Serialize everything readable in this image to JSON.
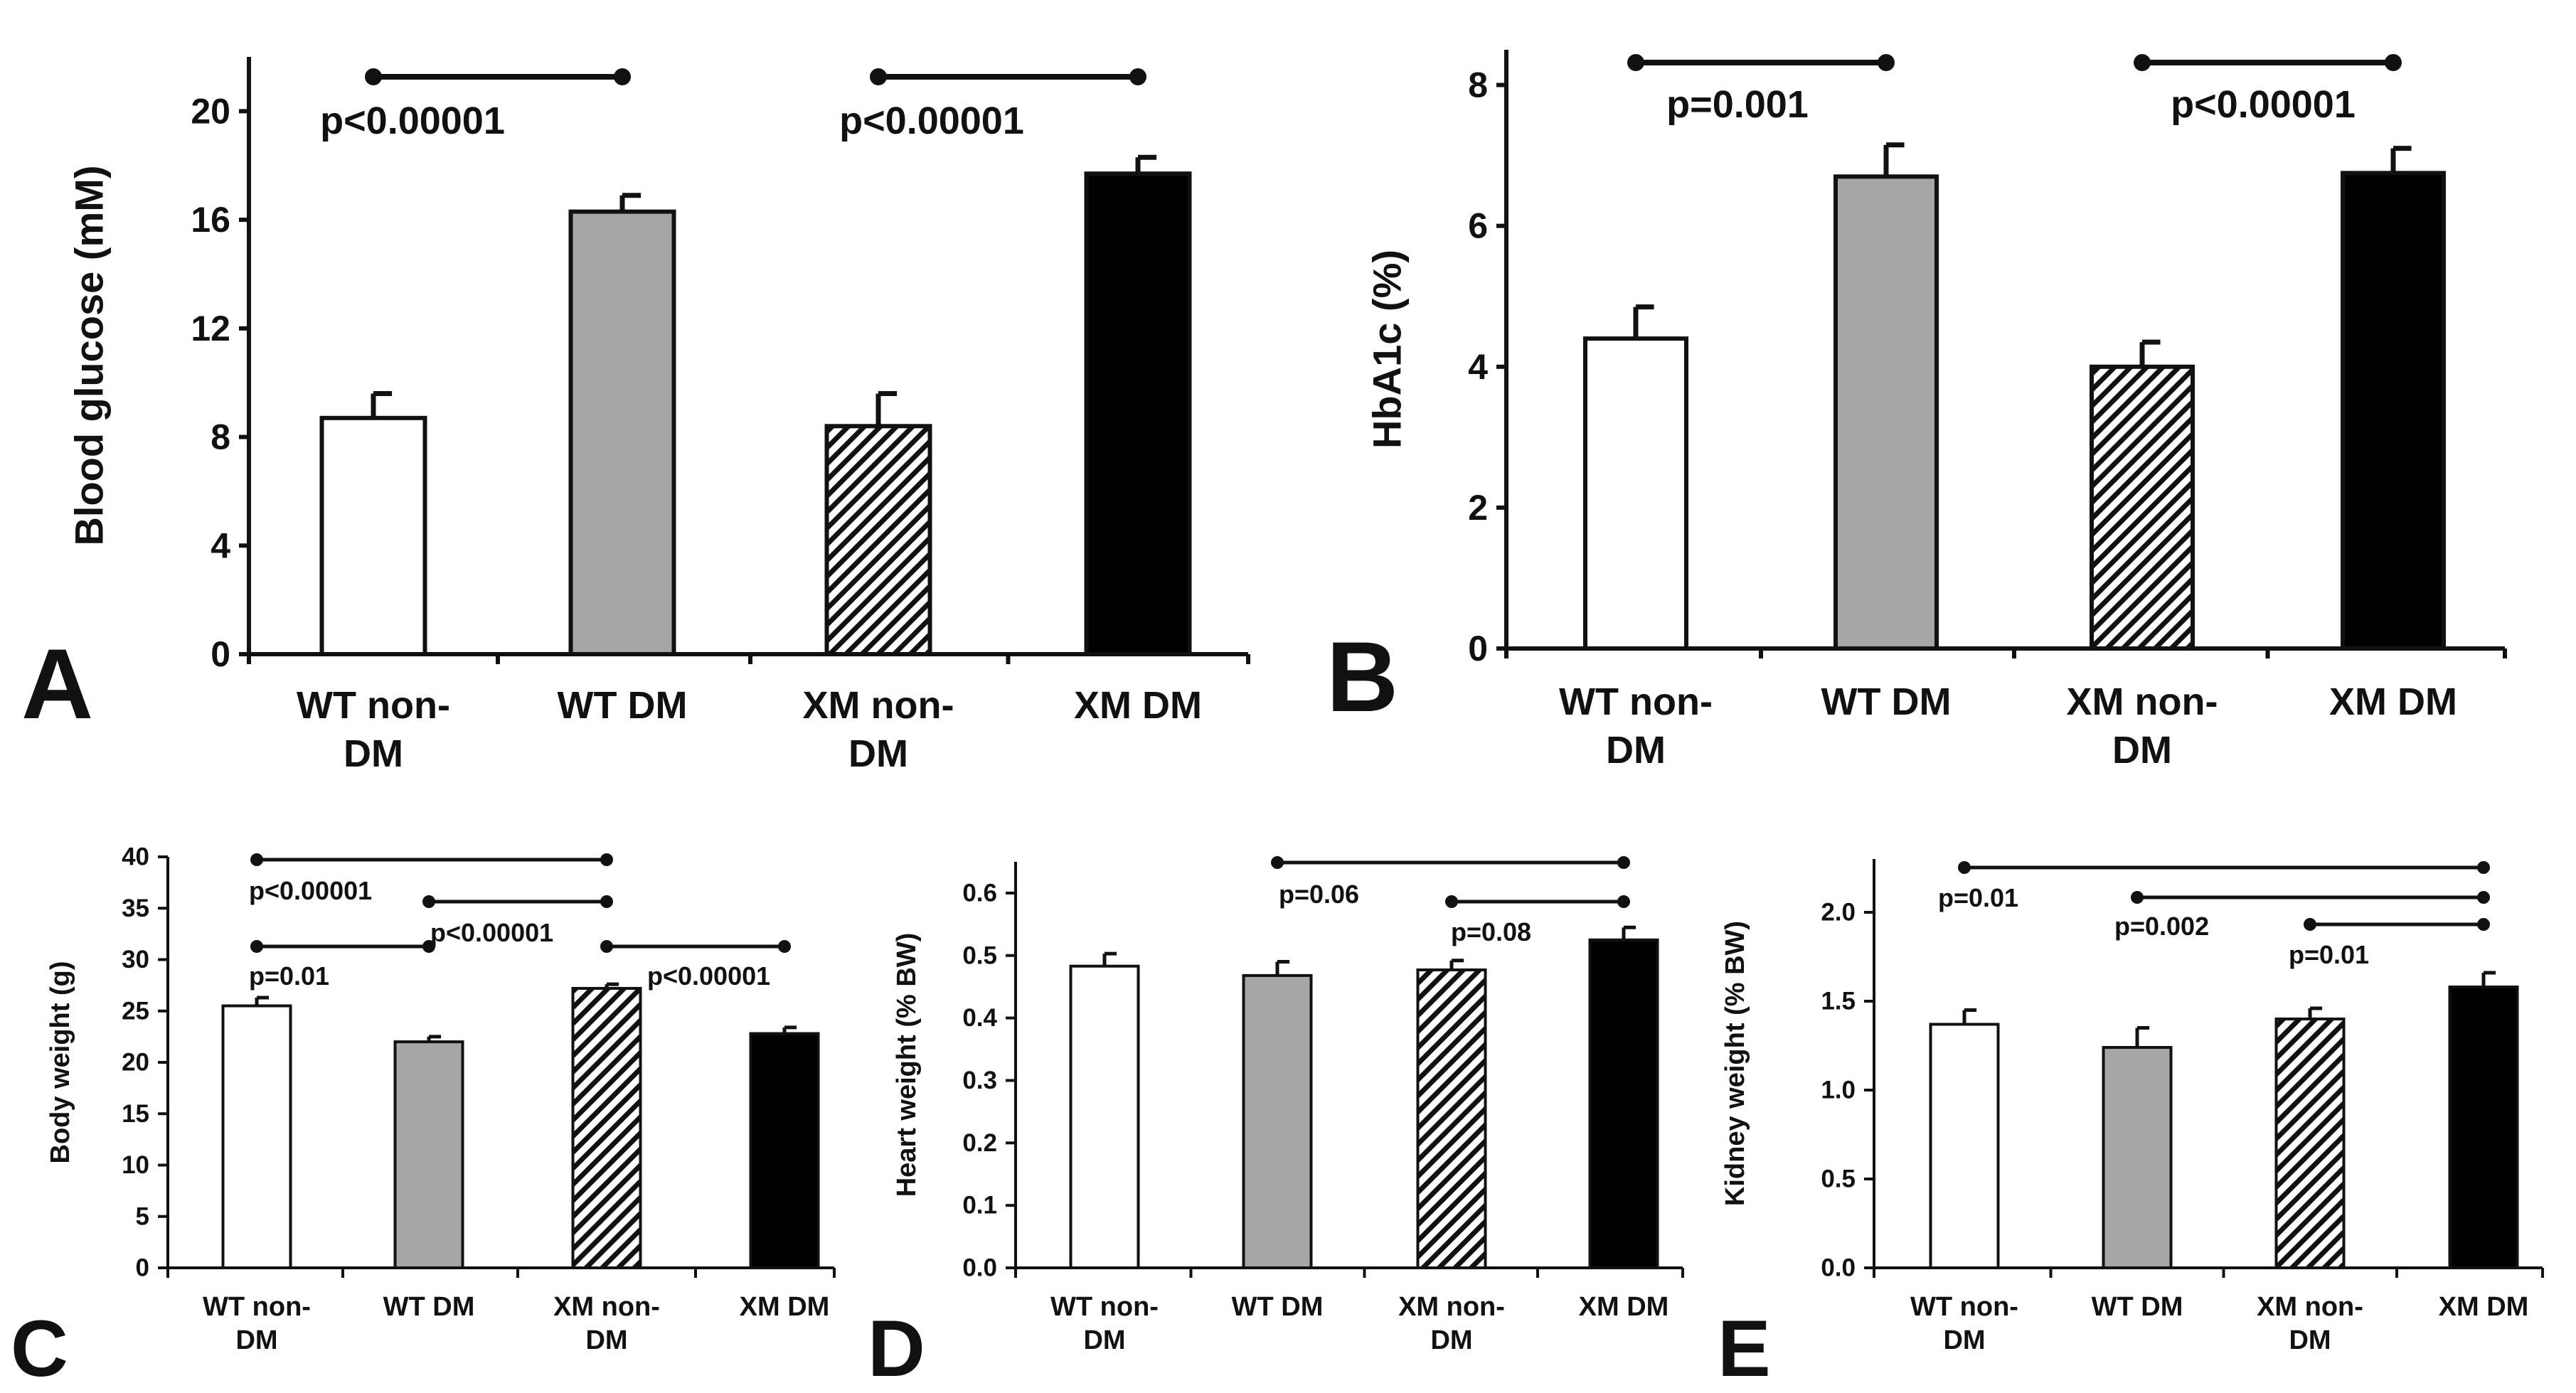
{
  "figure": {
    "categories": [
      [
        "WT non-",
        "DM"
      ],
      [
        "WT DM"
      ],
      [
        "XM non-",
        "DM"
      ],
      [
        "XM DM"
      ]
    ],
    "fills": {
      "wt_non_dm": "#ffffff",
      "wt_dm": "#a6a6a6",
      "xm_non_dm": "hatched",
      "xm_dm": "#000000"
    }
  },
  "chart_data": [
    {
      "panel": "A",
      "type": "bar",
      "ylabel": "Blood glucose (mM)",
      "ylim": [
        0,
        22
      ],
      "yticks": [
        "0",
        "4",
        "8",
        "12",
        "16",
        "20"
      ],
      "values": [
        8.7,
        16.3,
        8.4,
        17.7
      ],
      "errors": [
        0.9,
        0.6,
        1.2,
        0.6
      ],
      "comparisons": [
        {
          "from": 0,
          "to": 1,
          "label": "p<0.00001"
        },
        {
          "from": 2,
          "to": 3,
          "label": "p<0.00001"
        }
      ]
    },
    {
      "panel": "B",
      "type": "bar",
      "ylabel": "HbA1c (%)",
      "ylim": [
        0,
        8.5
      ],
      "yticks": [
        "0",
        "2",
        "4",
        "6",
        "8"
      ],
      "values": [
        4.4,
        6.7,
        4.0,
        6.75
      ],
      "errors": [
        0.45,
        0.45,
        0.35,
        0.35
      ],
      "comparisons": [
        {
          "from": 0,
          "to": 1,
          "label": "p=0.001"
        },
        {
          "from": 2,
          "to": 3,
          "label": "p<0.00001"
        }
      ]
    },
    {
      "panel": "C",
      "type": "bar",
      "ylabel": "Body weight (g)",
      "ylim": [
        0,
        40
      ],
      "yticks": [
        "0",
        "5",
        "10",
        "15",
        "20",
        "25",
        "30",
        "35",
        "40"
      ],
      "values": [
        25.5,
        22.0,
        27.2,
        22.8
      ],
      "errors": [
        0.8,
        0.5,
        0.4,
        0.6
      ],
      "comparisons": [
        {
          "from": 0,
          "to": 2,
          "label": "p<0.00001"
        },
        {
          "from": 1,
          "to": 2,
          "label": "p<0.00001"
        },
        {
          "from": 0,
          "to": 1,
          "label": "p=0.01"
        },
        {
          "from": 2,
          "to": 3,
          "label": "p<0.00001"
        }
      ]
    },
    {
      "panel": "D",
      "type": "bar",
      "ylabel": "Heart weight (% BW)",
      "ylim": [
        0,
        0.65
      ],
      "yticks": [
        "0.0",
        "0.1",
        "0.2",
        "0.3",
        "0.4",
        "0.5",
        "0.6"
      ],
      "values": [
        0.483,
        0.468,
        0.477,
        0.525
      ],
      "errors": [
        0.02,
        0.022,
        0.015,
        0.02
      ],
      "comparisons": [
        {
          "from": 1,
          "to": 3,
          "label": "p=0.06"
        },
        {
          "from": 2,
          "to": 3,
          "label": "p=0.08"
        }
      ]
    },
    {
      "panel": "E",
      "type": "bar",
      "ylabel": "Kidney weight (% BW)",
      "ylim": [
        0,
        2.3
      ],
      "yticks": [
        "0.0",
        "0.5",
        "1.0",
        "1.5",
        "2.0"
      ],
      "values": [
        1.37,
        1.24,
        1.4,
        1.58
      ],
      "errors": [
        0.08,
        0.11,
        0.06,
        0.08
      ],
      "comparisons": [
        {
          "from": 0,
          "to": 3,
          "label": "p=0.01"
        },
        {
          "from": 1,
          "to": 3,
          "label": "p=0.002"
        },
        {
          "from": 2,
          "to": 3,
          "label": "p=0.01"
        }
      ]
    }
  ]
}
